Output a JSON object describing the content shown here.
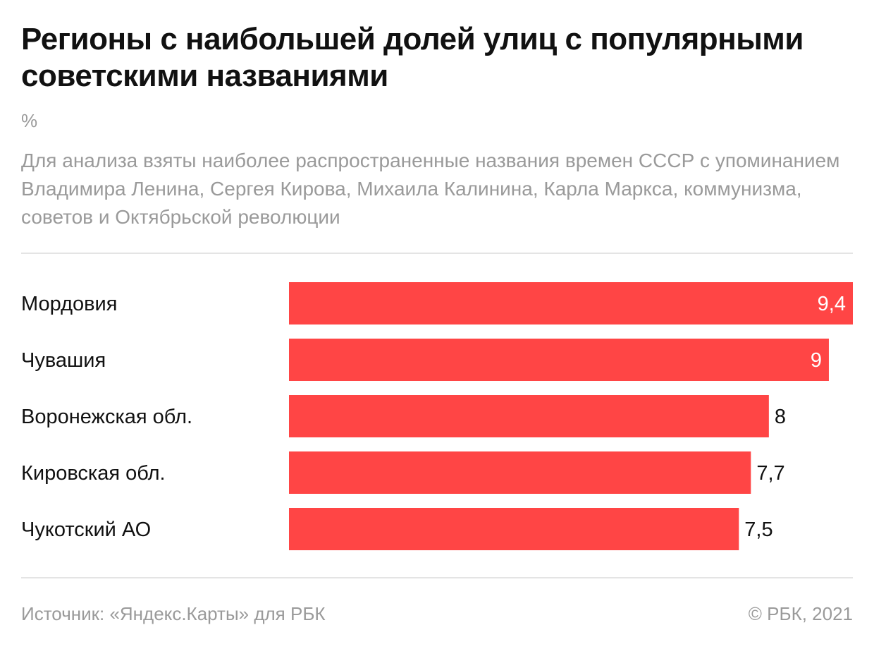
{
  "header": {
    "title": "Регионы с наибольшей долей улиц с популярными советскими названиями",
    "unit": "%",
    "note": "Для анализа взяты наиболее распространенные названия времен СССР с упоминанием Владимира Ленина, Сергея Кирова, Михаила Калинина, Карла Маркса, коммунизма, советов и Октябрьской революции"
  },
  "footer": {
    "source": "Источник: «Яндекс.Карты» для РБК",
    "copyright": "© РБК, 2021"
  },
  "colors": {
    "bar": "#ff4545",
    "value_inside": "#ffffff",
    "value_outside": "#111111"
  },
  "chart_data": {
    "type": "bar",
    "orientation": "horizontal",
    "categories": [
      "Мордовия",
      "Чувашия",
      "Воронежская обл.",
      "Кировская обл.",
      "Чукотский АО"
    ],
    "values": [
      9.4,
      9,
      8,
      7.7,
      7.5
    ],
    "value_labels": [
      "9,4",
      "9",
      "8",
      "7,7",
      "7,5"
    ],
    "xlim": [
      0,
      9.4
    ],
    "grid": false,
    "legend": "none"
  }
}
